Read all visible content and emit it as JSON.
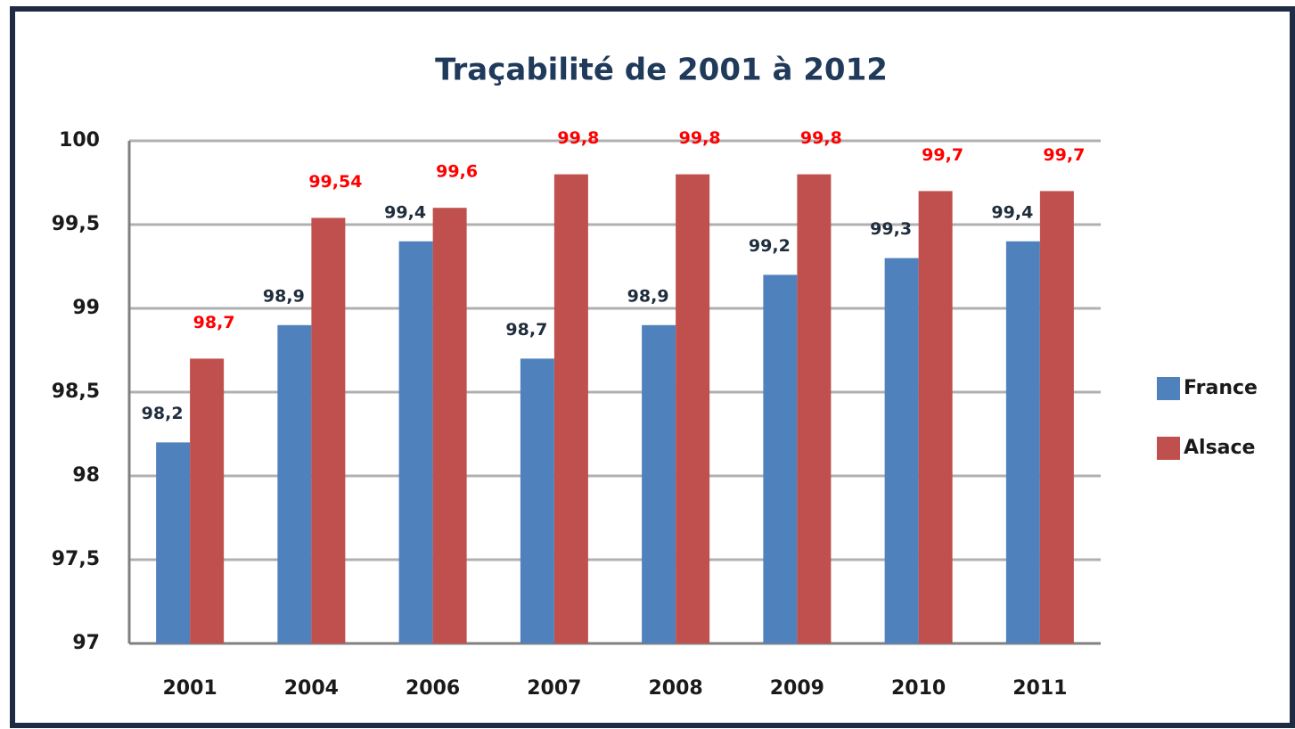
{
  "chart_data": {
    "type": "bar",
    "title": "Traçabilité de 2001 à 2012",
    "categories": [
      "2001",
      "2004",
      "2006",
      "2007",
      "2008",
      "2009",
      "2010",
      "2011"
    ],
    "series": [
      {
        "name": "France",
        "color": "#4f81bd",
        "label_color": "#1f2d3d",
        "values": [
          98.2,
          98.9,
          99.4,
          98.7,
          98.9,
          99.2,
          99.3,
          99.4
        ],
        "value_labels": [
          "98,2",
          "98,9",
          "99,4",
          "98,7",
          "98,9",
          "99,2",
          "99,3",
          "99,4"
        ]
      },
      {
        "name": "Alsace",
        "color": "#c0504d",
        "label_color": "#ff0000",
        "values": [
          98.7,
          99.54,
          99.6,
          99.8,
          99.8,
          99.8,
          99.7,
          99.7
        ],
        "value_labels": [
          "98,7",
          "99,54",
          "99,6",
          "99,8",
          "99,8",
          "99,8",
          "99,7",
          "99,7"
        ]
      }
    ],
    "ylim": [
      97,
      100
    ],
    "yticks": [
      97,
      {
        "value": 97.5,
        "label": "97,5"
      },
      98,
      {
        "value": 98.5,
        "label": "98,5"
      },
      99,
      {
        "value": 99.5,
        "label": "99,5"
      },
      100
    ],
    "grid": true,
    "legend": "right"
  }
}
